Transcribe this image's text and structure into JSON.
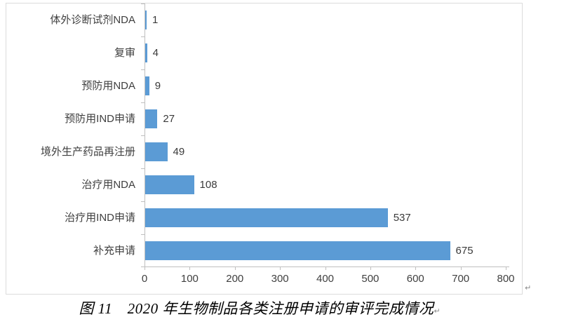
{
  "chart_data": {
    "type": "bar",
    "orientation": "horizontal",
    "title": "图 11　2020 年生物制品各类注册申请的审评完成情况",
    "categories": [
      "体外诊断试剂NDA",
      "复审",
      "预防用NDA",
      "预防用IND申请",
      "境外生产药品再注册",
      "治疗用NDA",
      "治疗用IND申请",
      "补充申请"
    ],
    "values": [
      1,
      4,
      9,
      27,
      49,
      108,
      537,
      675
    ],
    "data_labels": [
      "1",
      "4",
      "9",
      "27",
      "49",
      "108",
      "537",
      "675"
    ],
    "xlim": [
      0,
      800
    ],
    "x_ticks": [
      0,
      100,
      200,
      300,
      400,
      500,
      600,
      700,
      800
    ],
    "xlabel": "",
    "ylabel": "",
    "grid": false,
    "legend": "none",
    "bar_color": "#5b9bd5",
    "axis_color": "#bfbfbf",
    "label_color": "#3f3f3f"
  },
  "caption": {
    "text": "图 11　2020 年生物制品各类注册申请的审评完成情况"
  },
  "marks": {
    "pilcrow": "↵"
  }
}
